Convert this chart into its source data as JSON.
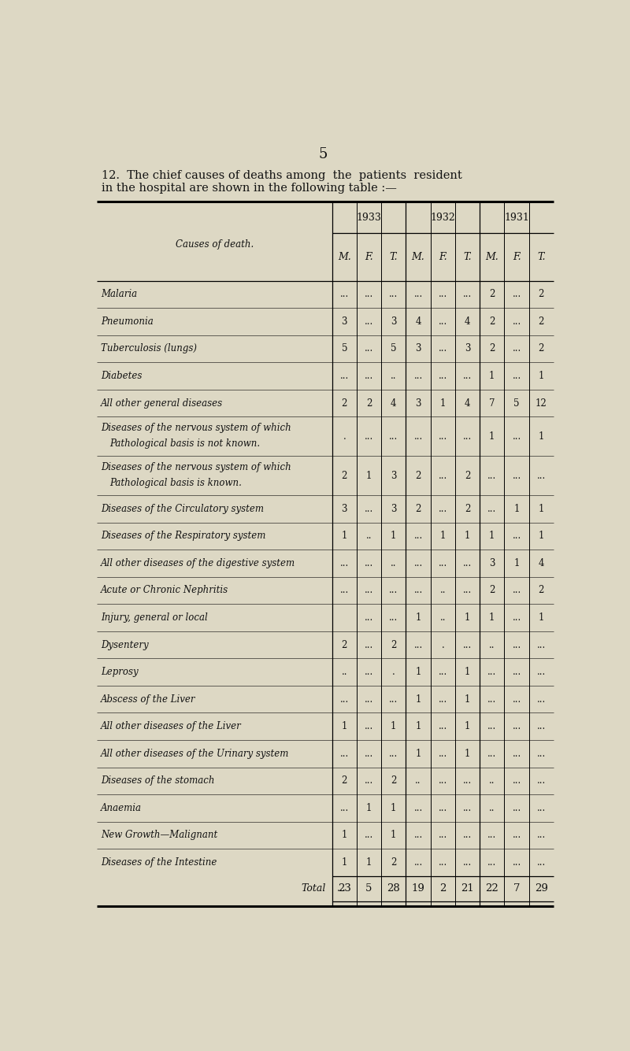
{
  "page_number": "5",
  "title_line1": "12.  The chief causes of deaths among  the  patients  resident",
  "title_line2": "in the hospital are shown in the following table :—",
  "bg_color": "#ddd8c4",
  "text_color": "#111111",
  "header_years": [
    "1933",
    "1932",
    "1931"
  ],
  "sub_headers": [
    "M.",
    "F.",
    "T.",
    "M.",
    "F.",
    "T.",
    "M.",
    "F.",
    "T."
  ],
  "causes": [
    "Malaria",
    "Pneumonia",
    "Tuberculosis (lungs)",
    "Diabetes",
    "All other general diseases",
    "Diseases of the nervous system of which\nPathological basis is not known.",
    "Diseases of the nervous system of which\nPathological basis is known.",
    "Diseases of the Circulatory system",
    "Diseases of the Respiratory system",
    "All other diseases of the digestive system",
    "Acute or Chronic Nephritis",
    "Injury, general or local",
    "Dysentery",
    "Leprosy",
    "Abscess of the Liver",
    "All other diseases of the Liver",
    "All other diseases of the Urinary system",
    "Diseases of the stomach",
    "Anaemia",
    "New Growth—Malignant",
    "Diseases of the Intestine"
  ],
  "data": [
    [
      "...",
      "...",
      "...",
      "...",
      "...",
      "...",
      "2",
      "...",
      "2"
    ],
    [
      "3",
      "...",
      "3",
      "4",
      "...",
      "4",
      "2",
      "...",
      "2"
    ],
    [
      "5",
      "...",
      "5",
      "3",
      "...",
      "3",
      "2",
      "...",
      "2"
    ],
    [
      "...",
      "...",
      "..",
      "...",
      "...",
      "...",
      "1",
      "...",
      "1"
    ],
    [
      "2",
      "2",
      "4",
      "3",
      "1",
      "4",
      "7",
      "5",
      "12"
    ],
    [
      ".",
      "...",
      "...",
      "...",
      "...",
      "...",
      "1",
      "...",
      "1"
    ],
    [
      "2",
      "1",
      "3",
      "2",
      "...",
      "2",
      "...",
      "...",
      "..."
    ],
    [
      "3",
      "...",
      "3",
      "2",
      "...",
      "2",
      "...",
      "1",
      "1"
    ],
    [
      "1",
      "..",
      "1",
      "...",
      "1",
      "1",
      "1",
      "...",
      "1"
    ],
    [
      "...",
      "...",
      "..",
      "...",
      "...",
      "...",
      "3",
      "1",
      "4"
    ],
    [
      "...",
      "...",
      "...",
      "...",
      "..",
      "...",
      "2",
      "...",
      "2"
    ],
    [
      "",
      "...",
      "...",
      "1",
      "..",
      "1",
      "1",
      "...",
      "1"
    ],
    [
      "2",
      "...",
      "2",
      "...",
      ".",
      "...",
      "..",
      "...",
      "..."
    ],
    [
      "..",
      "...",
      ".",
      "1",
      "...",
      "1",
      "...",
      "...",
      "..."
    ],
    [
      "...",
      "...",
      "...",
      "1",
      "...",
      "1",
      "...",
      "...",
      "..."
    ],
    [
      "1",
      "...",
      "1",
      "1",
      "...",
      "1",
      "...",
      "...",
      "..."
    ],
    [
      "...",
      "...",
      "...",
      "1",
      "...",
      "1",
      "...",
      "...",
      "..."
    ],
    [
      "2",
      "...",
      "2",
      "..",
      "...",
      "...",
      "..",
      "...",
      "..."
    ],
    [
      "...",
      "1",
      "1",
      "...",
      "...",
      "...",
      "..",
      "...",
      "..."
    ],
    [
      "1",
      "...",
      "1",
      "...",
      "...",
      "...",
      "...",
      "...",
      "..."
    ],
    [
      "1",
      "1",
      "2",
      "...",
      "...",
      "...",
      "...",
      "...",
      "..."
    ]
  ],
  "totals": [
    "23",
    "5",
    "28",
    "19",
    "2",
    "21",
    "22",
    "7",
    "29"
  ]
}
